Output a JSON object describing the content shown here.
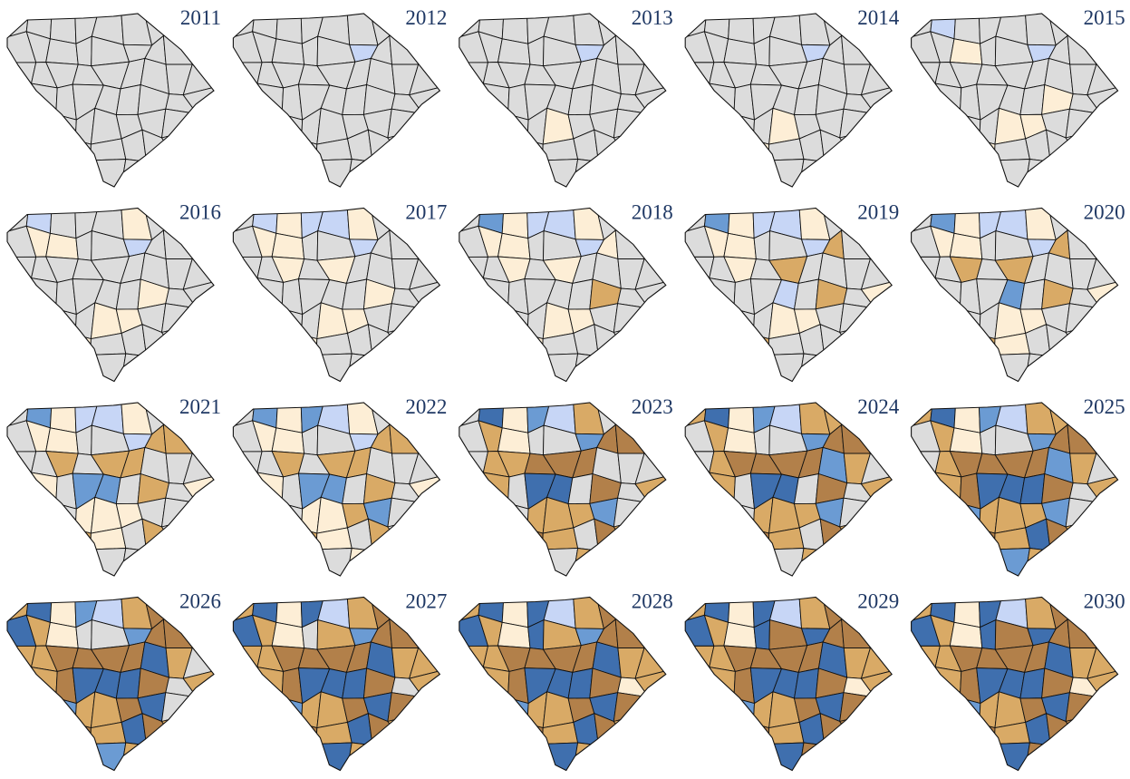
{
  "panels": [
    {
      "title": "2011"
    },
    {
      "title": "2012"
    },
    {
      "title": "2013"
    },
    {
      "title": "2014"
    },
    {
      "title": "2015"
    },
    {
      "title": "2016"
    },
    {
      "title": "2017"
    },
    {
      "title": "2018"
    },
    {
      "title": "2019"
    },
    {
      "title": "2020"
    },
    {
      "title": "2021"
    },
    {
      "title": "2022"
    },
    {
      "title": "2023"
    },
    {
      "title": "2024"
    },
    {
      "title": "2025"
    },
    {
      "title": "2026"
    },
    {
      "title": "2027"
    },
    {
      "title": "2028"
    },
    {
      "title": "2029"
    },
    {
      "title": "2030"
    }
  ]
}
